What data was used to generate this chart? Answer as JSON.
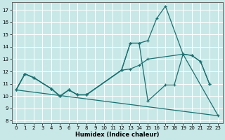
{
  "xlabel": "Humidex (Indice chaleur)",
  "bg_color": "#c8e8e8",
  "grid_color": "#ffffff",
  "line_color": "#1a7070",
  "xlim": [
    -0.5,
    23.5
  ],
  "ylim": [
    7.8,
    17.6
  ],
  "yticks": [
    8,
    9,
    10,
    11,
    12,
    13,
    14,
    15,
    16,
    17
  ],
  "xticks": [
    0,
    1,
    2,
    3,
    4,
    5,
    6,
    7,
    8,
    9,
    10,
    11,
    12,
    13,
    14,
    15,
    16,
    17,
    18,
    19,
    20,
    21,
    22,
    23
  ],
  "line1_x": [
    0,
    1,
    2,
    4,
    5,
    6,
    7,
    8,
    12,
    13,
    14,
    15,
    16,
    17,
    19,
    20,
    21,
    22
  ],
  "line1_y": [
    10.5,
    11.8,
    11.5,
    10.6,
    10.0,
    10.5,
    10.1,
    10.1,
    12.1,
    14.3,
    14.3,
    14.5,
    16.3,
    17.3,
    13.4,
    13.3,
    12.8,
    11.0
  ],
  "line2_x": [
    0,
    1,
    2,
    4,
    5,
    6,
    7,
    8,
    12,
    13,
    14,
    15,
    17,
    18,
    19,
    20,
    21,
    22
  ],
  "line2_y": [
    10.5,
    11.8,
    11.5,
    10.6,
    10.0,
    10.5,
    10.1,
    10.1,
    12.1,
    14.3,
    14.3,
    9.6,
    10.9,
    10.9,
    13.4,
    13.3,
    12.8,
    11.0
  ],
  "line3_x": [
    0,
    1,
    2,
    4,
    5,
    6,
    7,
    8,
    12,
    13,
    14,
    15,
    19,
    23
  ],
  "line3_y": [
    10.5,
    11.8,
    11.5,
    10.6,
    10.0,
    10.5,
    10.1,
    10.1,
    12.1,
    12.2,
    12.5,
    13.0,
    13.4,
    8.4
  ],
  "line4_x": [
    0,
    23
  ],
  "line4_y": [
    10.5,
    8.4
  ]
}
